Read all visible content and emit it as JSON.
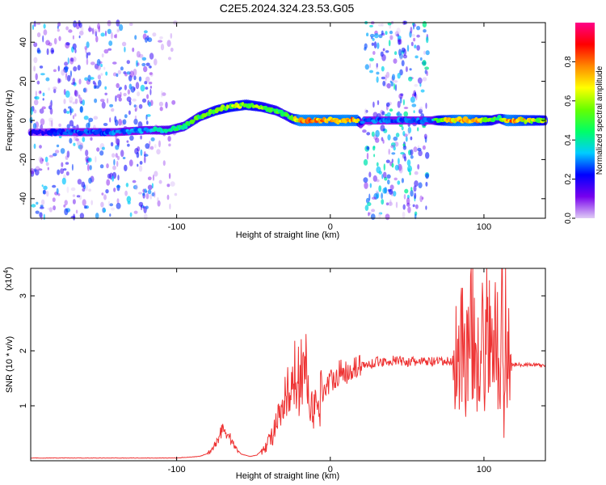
{
  "title": "C2E5.2024.324.23.53.G05",
  "chart_data": [
    {
      "type": "heatmap",
      "title": "C2E5.2024.324.23.53.G05",
      "xlabel": "Height of straight line (km)",
      "ylabel": "Frequency (Hz)",
      "xlim": [
        -195,
        140
      ],
      "ylim": [
        -50,
        50
      ],
      "x_ticks": [
        -100,
        0,
        100
      ],
      "x_tick_labels": [
        "-100",
        "0",
        "100"
      ],
      "y_ticks": [
        -40,
        -20,
        0,
        20,
        40
      ],
      "y_tick_labels": [
        "-40",
        "-20",
        "0",
        "20",
        "40"
      ],
      "colorbar": {
        "label": "Normalized spectral amplitude",
        "range": [
          0,
          1
        ],
        "ticks": [
          0.0,
          0.2,
          0.4,
          0.6,
          0.8
        ],
        "tick_labels": [
          "0.0",
          "0.2",
          "0.4",
          "0.6",
          "0.8"
        ],
        "colors": [
          "#e0ccf5",
          "#7700ee",
          "#0000ff",
          "#00ccff",
          "#00ff66",
          "#66ff00",
          "#ffff00",
          "#ff8800",
          "#ff0000",
          "#ff0088"
        ]
      },
      "ridge": {
        "x": [
          -195,
          -180,
          -160,
          -140,
          -120,
          -105,
          -95,
          -85,
          -75,
          -65,
          -55,
          -45,
          -35,
          -30,
          -25,
          -20,
          -10,
          0,
          10,
          18,
          20,
          22,
          64,
          66,
          70,
          80,
          90,
          100,
          105,
          110,
          115,
          125,
          140
        ],
        "y": [
          -6,
          -6,
          -6,
          -6,
          -5,
          -5,
          -3,
          2,
          5,
          7,
          8,
          7,
          5,
          3,
          1,
          0,
          0,
          0,
          0,
          0,
          -2,
          0,
          0,
          0,
          0,
          0,
          0,
          0,
          0,
          1,
          0,
          0,
          0
        ],
        "amplitude": [
          0.2,
          0.25,
          0.3,
          0.3,
          0.35,
          0.45,
          0.5,
          0.55,
          0.6,
          0.65,
          0.65,
          0.6,
          0.55,
          0.5,
          0.6,
          0.85,
          0.85,
          0.8,
          0.85,
          0.8,
          0.3,
          0.3,
          0.3,
          0.3,
          0.6,
          0.8,
          0.85,
          0.7,
          0.6,
          0.5,
          0.85,
          0.75,
          0.6
        ]
      },
      "noise_regions": [
        {
          "x_range": [
            -195,
            -115
          ],
          "amplitude": 0.25
        },
        {
          "x_range": [
            -115,
            -100
          ],
          "amplitude": 0.1
        },
        {
          "x_range": [
            22,
            64
          ],
          "amplitude": 0.3
        }
      ]
    },
    {
      "type": "line",
      "xlabel": "Height of straight line (km)",
      "ylabel": "SNR (10 * v/v)",
      "y_multiplier_label": "(x10",
      "y_multiplier_exp": "4",
      "xlim": [
        -195,
        140
      ],
      "ylim": [
        0,
        3.5
      ],
      "x_ticks": [
        -100,
        0,
        100
      ],
      "x_tick_labels": [
        "-100",
        "0",
        "100"
      ],
      "y_ticks": [
        1,
        2,
        3
      ],
      "y_tick_labels": [
        "1",
        "2",
        "3"
      ],
      "color": "#ee3333",
      "series": [
        {
          "x": [
            -195,
            -160,
            -120,
            -100,
            -85,
            -78,
            -74,
            -70,
            -66,
            -62,
            -58,
            -52,
            -48,
            -44,
            -40,
            -36,
            -32,
            -30,
            -28,
            -26,
            -24,
            -22,
            -20,
            -18,
            -15,
            -12,
            -9,
            -6,
            -3,
            0,
            3,
            6,
            9,
            12,
            15,
            20,
            25,
            30,
            35,
            40,
            45,
            50,
            55,
            60,
            65,
            70,
            75,
            78,
            80,
            83,
            86,
            89,
            92,
            95,
            98,
            100,
            103,
            106,
            108,
            110,
            112,
            113,
            114,
            115,
            117,
            120,
            130,
            140
          ],
          "y": [
            0.05,
            0.05,
            0.05,
            0.05,
            0.08,
            0.15,
            0.35,
            0.6,
            0.45,
            0.25,
            0.12,
            0.08,
            0.1,
            0.2,
            0.35,
            0.6,
            0.8,
            1.0,
            1.25,
            0.9,
            1.5,
            1.7,
            1.3,
            1.9,
            1.5,
            1.0,
            0.9,
            1.2,
            1.35,
            1.45,
            1.55,
            1.6,
            1.6,
            1.65,
            1.7,
            1.72,
            1.75,
            1.8,
            1.8,
            1.82,
            1.82,
            1.8,
            1.8,
            1.8,
            1.8,
            1.8,
            1.8,
            1.8,
            1.85,
            1.9,
            2.2,
            1.8,
            2.5,
            1.9,
            2.6,
            1.6,
            2.8,
            1.3,
            3.1,
            0.9,
            3.35,
            0.4,
            3.3,
            2.0,
            1.75,
            1.75,
            1.75,
            1.73
          ]
        }
      ]
    }
  ]
}
